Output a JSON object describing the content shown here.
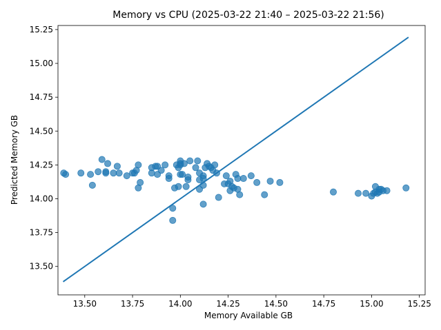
{
  "chart_data": {
    "type": "scatter",
    "title": "Memory vs CPU (2025-03-22 21:40 – 2025-03-22 21:56)",
    "xlabel": "Memory Available GB",
    "ylabel": "Predicted Memory GB",
    "xlim": [
      13.36,
      15.28
    ],
    "ylim": [
      13.29,
      15.28
    ],
    "xticks": [
      "13.50",
      "13.75",
      "14.00",
      "14.25",
      "14.50",
      "14.75",
      "15.00",
      "15.25"
    ],
    "xtick_values": [
      13.5,
      13.75,
      14.0,
      14.25,
      14.5,
      14.75,
      15.0,
      15.25
    ],
    "yticks": [
      "13.50",
      "13.75",
      "14.00",
      "14.25",
      "14.50",
      "14.75",
      "15.00",
      "15.25"
    ],
    "ytick_values": [
      13.5,
      13.75,
      14.0,
      14.25,
      14.5,
      14.75,
      15.0,
      15.25
    ],
    "grid": false,
    "colors": {
      "points": "#1f77b4",
      "line": "#1f77b4"
    },
    "trend_line": {
      "x": [
        13.39,
        15.19
      ],
      "y": [
        13.39,
        15.19
      ]
    },
    "points": [
      [
        13.39,
        14.19
      ],
      [
        13.4,
        14.18
      ],
      [
        13.48,
        14.19
      ],
      [
        13.53,
        14.18
      ],
      [
        13.54,
        14.1
      ],
      [
        13.57,
        14.2
      ],
      [
        13.59,
        14.29
      ],
      [
        13.61,
        14.2
      ],
      [
        13.61,
        14.19
      ],
      [
        13.62,
        14.26
      ],
      [
        13.65,
        14.19
      ],
      [
        13.67,
        14.24
      ],
      [
        13.68,
        14.19
      ],
      [
        13.72,
        14.17
      ],
      [
        13.75,
        14.19
      ],
      [
        13.76,
        14.19
      ],
      [
        13.77,
        14.21
      ],
      [
        13.78,
        14.25
      ],
      [
        13.78,
        14.08
      ],
      [
        13.79,
        14.12
      ],
      [
        13.85,
        14.23
      ],
      [
        13.85,
        14.19
      ],
      [
        13.87,
        14.24
      ],
      [
        13.88,
        14.24
      ],
      [
        13.88,
        14.18
      ],
      [
        13.9,
        14.21
      ],
      [
        13.92,
        14.25
      ],
      [
        13.94,
        14.17
      ],
      [
        13.94,
        14.15
      ],
      [
        13.96,
        13.93
      ],
      [
        13.96,
        13.84
      ],
      [
        13.97,
        14.08
      ],
      [
        13.98,
        14.25
      ],
      [
        13.99,
        14.23
      ],
      [
        13.99,
        14.09
      ],
      [
        14.0,
        14.28
      ],
      [
        14.0,
        14.26
      ],
      [
        14.0,
        14.25
      ],
      [
        14.0,
        14.18
      ],
      [
        14.01,
        14.18
      ],
      [
        14.02,
        14.26
      ],
      [
        14.03,
        14.09
      ],
      [
        14.04,
        14.16
      ],
      [
        14.04,
        14.14
      ],
      [
        14.05,
        14.28
      ],
      [
        14.08,
        14.23
      ],
      [
        14.09,
        14.28
      ],
      [
        14.1,
        14.19
      ],
      [
        14.1,
        14.14
      ],
      [
        14.1,
        14.07
      ],
      [
        14.12,
        14.17
      ],
      [
        14.12,
        14.15
      ],
      [
        14.12,
        14.1
      ],
      [
        14.12,
        13.96
      ],
      [
        14.13,
        14.23
      ],
      [
        14.14,
        14.26
      ],
      [
        14.15,
        14.24
      ],
      [
        14.16,
        14.23
      ],
      [
        14.17,
        14.21
      ],
      [
        14.18,
        14.25
      ],
      [
        14.19,
        14.19
      ],
      [
        14.2,
        14.01
      ],
      [
        14.23,
        14.11
      ],
      [
        14.24,
        14.17
      ],
      [
        14.25,
        14.11
      ],
      [
        14.26,
        14.13
      ],
      [
        14.26,
        14.06
      ],
      [
        14.27,
        14.09
      ],
      [
        14.28,
        14.08
      ],
      [
        14.29,
        14.18
      ],
      [
        14.3,
        14.07
      ],
      [
        14.3,
        14.15
      ],
      [
        14.31,
        14.03
      ],
      [
        14.33,
        14.15
      ],
      [
        14.37,
        14.17
      ],
      [
        14.4,
        14.12
      ],
      [
        14.44,
        14.03
      ],
      [
        14.47,
        14.13
      ],
      [
        14.52,
        14.12
      ],
      [
        14.8,
        14.05
      ],
      [
        14.93,
        14.04
      ],
      [
        14.97,
        14.04
      ],
      [
        15.0,
        14.02
      ],
      [
        15.01,
        14.04
      ],
      [
        15.02,
        14.05
      ],
      [
        15.02,
        14.09
      ],
      [
        15.03,
        14.04
      ],
      [
        15.04,
        14.05
      ],
      [
        15.04,
        14.07
      ],
      [
        15.05,
        14.07
      ],
      [
        15.06,
        14.06
      ],
      [
        15.08,
        14.06
      ],
      [
        15.18,
        14.08
      ]
    ]
  }
}
